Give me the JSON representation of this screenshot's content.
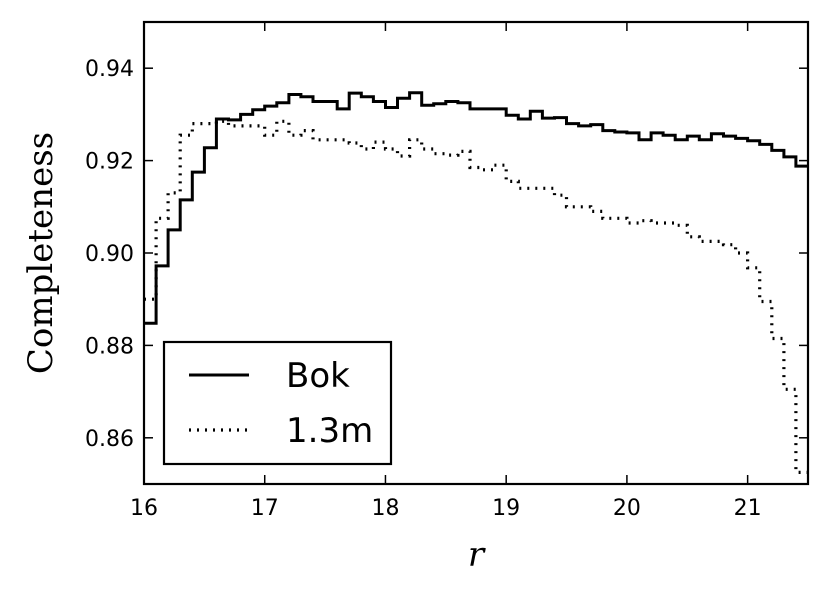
{
  "chart_data": {
    "type": "line",
    "style": "step",
    "xlabel": "r",
    "ylabel": "Completeness",
    "xlim": [
      16.0,
      21.5
    ],
    "ylim": [
      0.85,
      0.95
    ],
    "xticks": [
      16,
      17,
      18,
      19,
      20,
      21
    ],
    "yticks": [
      0.86,
      0.88,
      0.9,
      0.92,
      0.94
    ],
    "xtick_labels": [
      "16",
      "17",
      "18",
      "19",
      "20",
      "21"
    ],
    "ytick_labels": [
      "0.86",
      "0.88",
      "0.90",
      "0.92",
      "0.94"
    ],
    "grid": false,
    "legend_position": "lower-left",
    "bin_width": 0.1,
    "x": [
      16.0,
      16.1,
      16.2,
      16.3,
      16.4,
      16.5,
      16.6,
      16.7,
      16.8,
      16.9,
      17.0,
      17.1,
      17.2,
      17.3,
      17.4,
      17.5,
      17.6,
      17.7,
      17.8,
      17.9,
      18.0,
      18.1,
      18.2,
      18.3,
      18.4,
      18.5,
      18.6,
      18.7,
      18.8,
      18.9,
      19.0,
      19.1,
      19.2,
      19.3,
      19.4,
      19.5,
      19.6,
      19.7,
      19.8,
      19.9,
      20.0,
      20.1,
      20.2,
      20.3,
      20.4,
      20.5,
      20.6,
      20.7,
      20.8,
      20.9,
      21.0,
      21.1,
      21.2,
      21.3,
      21.4
    ],
    "series": [
      {
        "name": "Bok",
        "linestyle": "solid",
        "color": "#000000",
        "values": [
          0.8848,
          0.8972,
          0.905,
          0.9115,
          0.9175,
          0.9228,
          0.929,
          0.9288,
          0.93,
          0.931,
          0.9318,
          0.9325,
          0.9343,
          0.9338,
          0.9328,
          0.9328,
          0.9312,
          0.9346,
          0.9338,
          0.9328,
          0.9315,
          0.9335,
          0.9347,
          0.932,
          0.9323,
          0.9328,
          0.9325,
          0.9312,
          0.9312,
          0.9312,
          0.9298,
          0.929,
          0.9307,
          0.9292,
          0.9293,
          0.928,
          0.9275,
          0.9278,
          0.9265,
          0.9262,
          0.926,
          0.9245,
          0.926,
          0.9255,
          0.9245,
          0.9253,
          0.9245,
          0.9258,
          0.9253,
          0.9248,
          0.9243,
          0.9235,
          0.9222,
          0.9208,
          0.9188
        ]
      },
      {
        "name": "1.3m",
        "linestyle": "dotted",
        "color": "#000000",
        "values": [
          0.89,
          0.9075,
          0.913,
          0.9255,
          0.928,
          0.928,
          0.9285,
          0.9275,
          0.9275,
          0.9275,
          0.9255,
          0.9285,
          0.9255,
          0.9265,
          0.9245,
          0.9245,
          0.9245,
          0.9238,
          0.9225,
          0.924,
          0.9225,
          0.921,
          0.9245,
          0.9225,
          0.9215,
          0.9212,
          0.922,
          0.9185,
          0.918,
          0.919,
          0.9155,
          0.914,
          0.914,
          0.914,
          0.9125,
          0.91,
          0.91,
          0.909,
          0.9075,
          0.9075,
          0.9065,
          0.907,
          0.9065,
          0.9065,
          0.906,
          0.9035,
          0.9025,
          0.9025,
          0.9018,
          0.9,
          0.8968,
          0.8895,
          0.8815,
          0.8705,
          0.8525
        ]
      }
    ]
  }
}
